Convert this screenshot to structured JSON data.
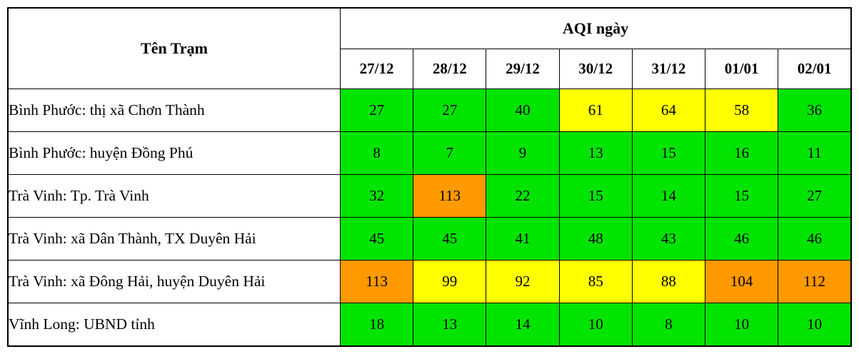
{
  "table": {
    "station_header": "Tên Trạm",
    "group_header": "AQI ngày",
    "dates": [
      "27/12",
      "28/12",
      "29/12",
      "30/12",
      "31/12",
      "01/01",
      "02/01"
    ],
    "rows": [
      {
        "station": "Bình Phước: thị xã Chơn Thành",
        "values": [
          27,
          27,
          40,
          61,
          64,
          58,
          36
        ]
      },
      {
        "station": "Bình Phước: huyện Đồng Phú",
        "values": [
          8,
          7,
          9,
          13,
          15,
          16,
          11
        ]
      },
      {
        "station": "Trà Vinh: Tp. Trà Vinh",
        "values": [
          32,
          113,
          22,
          15,
          14,
          15,
          27
        ]
      },
      {
        "station": "Trà Vinh: xã Dân Thành, TX Duyên Hải",
        "values": [
          45,
          45,
          41,
          48,
          43,
          46,
          46
        ]
      },
      {
        "station": "Trà Vinh: xã Đông Hải, huyện Duyên Hải",
        "values": [
          113,
          99,
          92,
          85,
          88,
          104,
          112
        ]
      },
      {
        "station": "Vĩnh Long: UBND tỉnh",
        "values": [
          18,
          13,
          14,
          10,
          8,
          10,
          10
        ]
      }
    ]
  },
  "aqi_color_scale": {
    "thresholds": [
      {
        "max": 50,
        "level": "good",
        "color": "#00e400"
      },
      {
        "max": 100,
        "level": "moderate",
        "color": "#ffff00"
      },
      {
        "max": 150,
        "level": "unhealthy-for-sensitive",
        "color": "#ff9900"
      }
    ],
    "text_color": "#000000",
    "border_color": "#000000"
  },
  "chart_data": {
    "type": "heatmap",
    "title": "AQI ngày",
    "xlabel": "Ngày",
    "ylabel": "Tên Trạm",
    "categories": [
      "27/12",
      "28/12",
      "29/12",
      "30/12",
      "31/12",
      "01/01",
      "02/01"
    ],
    "series": [
      {
        "name": "Bình Phước: thị xã Chơn Thành",
        "values": [
          27,
          27,
          40,
          61,
          64,
          58,
          36
        ]
      },
      {
        "name": "Bình Phước: huyện Đồng Phú",
        "values": [
          8,
          7,
          9,
          13,
          15,
          16,
          11
        ]
      },
      {
        "name": "Trà Vinh: Tp. Trà Vinh",
        "values": [
          32,
          113,
          22,
          15,
          14,
          15,
          27
        ]
      },
      {
        "name": "Trà Vinh: xã Dân Thành, TX Duyên Hải",
        "values": [
          45,
          45,
          41,
          48,
          43,
          46,
          46
        ]
      },
      {
        "name": "Trà Vinh: xã Đông Hải, huyện Duyên Hải",
        "values": [
          113,
          99,
          92,
          85,
          88,
          104,
          112
        ]
      },
      {
        "name": "Vĩnh Long: UBND tỉnh",
        "values": [
          18,
          13,
          14,
          10,
          8,
          10,
          10
        ]
      }
    ],
    "color_coding": "AQI: <=50 green #00e400, 51-100 yellow #ffff00, 101-150 orange #ff9900"
  }
}
